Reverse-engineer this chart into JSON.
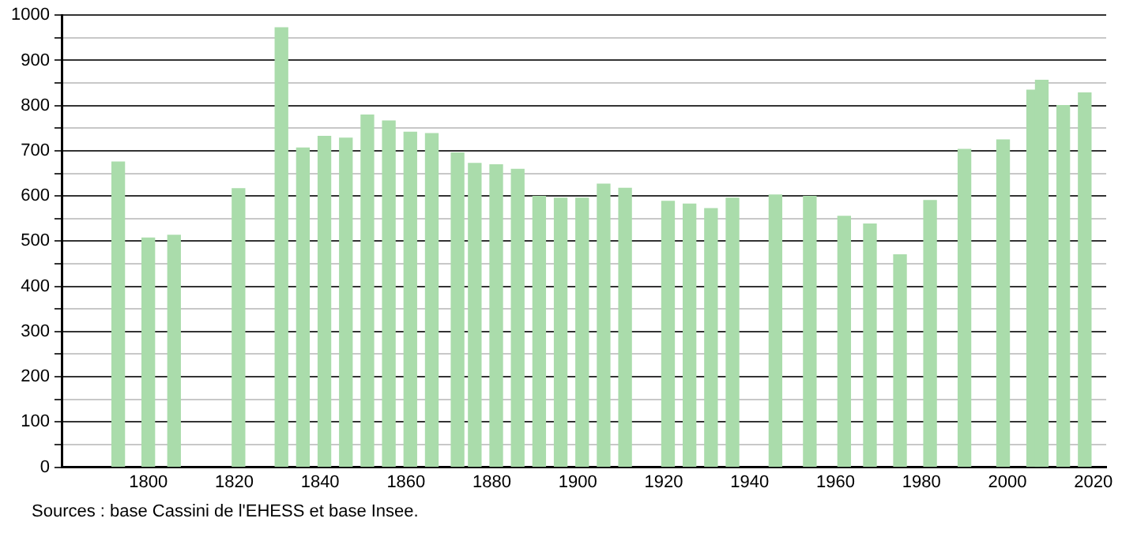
{
  "chart_data": {
    "type": "bar",
    "x": [
      1793,
      1800,
      1806,
      1821,
      1831,
      1836,
      1841,
      1846,
      1851,
      1856,
      1861,
      1866,
      1872,
      1876,
      1881,
      1886,
      1891,
      1896,
      1901,
      1906,
      1911,
      1921,
      1926,
      1931,
      1936,
      1946,
      1954,
      1962,
      1968,
      1975,
      1982,
      1990,
      1999,
      2006,
      2008,
      2013,
      2018
    ],
    "values": [
      675,
      507,
      513,
      616,
      972,
      706,
      732,
      728,
      779,
      766,
      741,
      738,
      695,
      672,
      669,
      659,
      599,
      595,
      595,
      626,
      617,
      588,
      582,
      572,
      595,
      602,
      599,
      555,
      538,
      470,
      590,
      703,
      724,
      834,
      856,
      800,
      828
    ],
    "color": "#aadcab",
    "xlim": [
      1780,
      2023
    ],
    "xticks": [
      1800,
      1820,
      1840,
      1860,
      1880,
      1900,
      1920,
      1940,
      1960,
      1980,
      2000,
      2020
    ],
    "ylim": [
      0,
      1000
    ],
    "yticks": [
      0,
      {
        "value": 50,
        "label": null
      },
      100,
      {
        "value": 150,
        "label": null
      },
      200,
      {
        "value": 250,
        "label": null
      },
      300,
      {
        "value": 350,
        "label": null
      },
      400,
      {
        "value": 450,
        "label": null
      },
      500,
      {
        "value": 550,
        "label": null
      },
      600,
      {
        "value": 650,
        "label": null
      },
      700,
      {
        "value": 750,
        "label": null
      },
      800,
      {
        "value": 850,
        "label": null
      },
      900,
      {
        "value": 950,
        "label": null
      },
      1000
    ],
    "grid": "y",
    "legend": false,
    "annotations": [
      "Sources : base Cassini de l'EHESS et base Insee."
    ]
  }
}
